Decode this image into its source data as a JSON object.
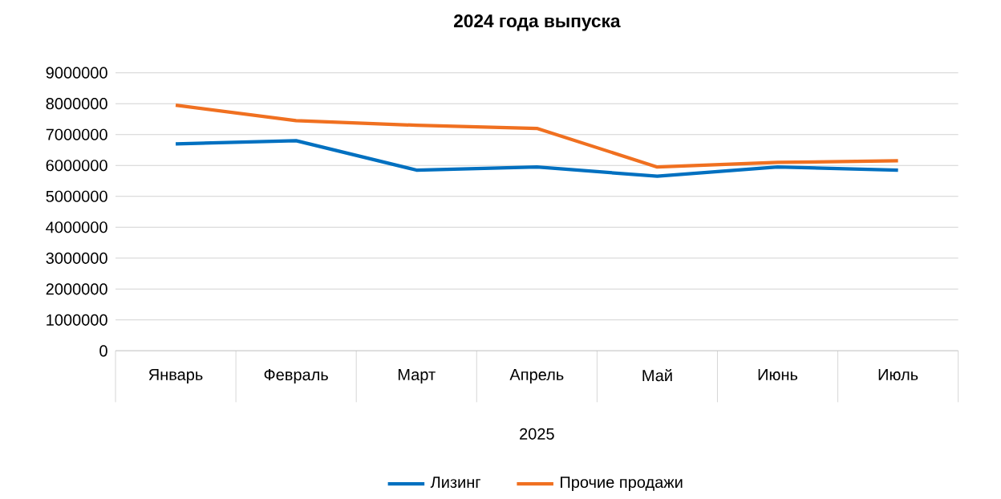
{
  "chart_data": {
    "type": "line",
    "title": "2024 года выпуска",
    "xlabel": "2025",
    "categories": [
      "Январь",
      "Февраль",
      "Март",
      "Апрель",
      "Май",
      "Июнь",
      "Июль"
    ],
    "series": [
      {
        "name": "Лизинг",
        "color": "#0070c0",
        "values": [
          6700000,
          6800000,
          5850000,
          5950000,
          5650000,
          5950000,
          5850000
        ]
      },
      {
        "name": "Прочие продажи",
        "color": "#f07020",
        "values": [
          7950000,
          7450000,
          7300000,
          7200000,
          5950000,
          6100000,
          6150000
        ]
      }
    ],
    "ylim": [
      0,
      9000000
    ],
    "yticks": [
      0,
      1000000,
      2000000,
      3000000,
      4000000,
      5000000,
      6000000,
      7000000,
      8000000,
      9000000
    ],
    "grid": "y",
    "legend": "bottom",
    "marker": "none",
    "line_style": "solid"
  }
}
